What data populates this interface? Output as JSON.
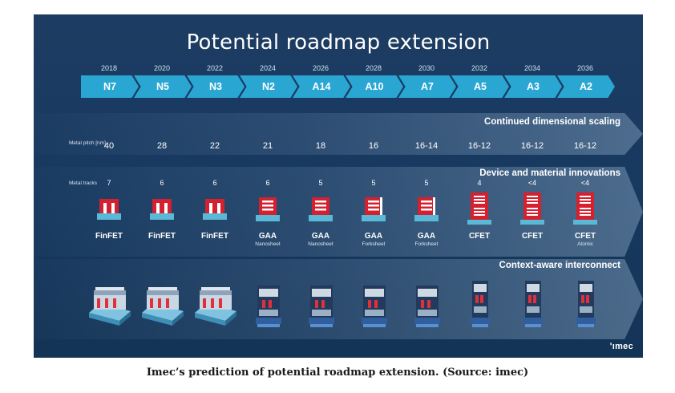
{
  "slide": {
    "title": "Potential roadmap extension",
    "logo": "'ımec"
  },
  "nodes": [
    {
      "year": "2018",
      "name": "N7",
      "pitch": "40",
      "tracks": "7",
      "device": "FinFET",
      "device_sub": "",
      "device_type": "finfet",
      "stack": 0,
      "chip": "finfet"
    },
    {
      "year": "2020",
      "name": "N5",
      "pitch": "28",
      "tracks": "6",
      "device": "FinFET",
      "device_sub": "",
      "device_type": "finfet",
      "stack": 0,
      "chip": "finfet"
    },
    {
      "year": "2022",
      "name": "N3",
      "pitch": "22",
      "tracks": "6",
      "device": "FinFET",
      "device_sub": "",
      "device_type": "finfet",
      "stack": 0,
      "chip": "finfet"
    },
    {
      "year": "2024",
      "name": "N2",
      "pitch": "21",
      "tracks": "6",
      "device": "GAA",
      "device_sub": "Nanosheet",
      "device_type": "nanosheet",
      "stack": 0,
      "chip": "gaa"
    },
    {
      "year": "2026",
      "name": "A14",
      "pitch": "18",
      "tracks": "5",
      "device": "GAA",
      "device_sub": "Nanosheet",
      "device_type": "nanosheet",
      "stack": 0,
      "chip": "gaa"
    },
    {
      "year": "2028",
      "name": "A10",
      "pitch": "16",
      "tracks": "5",
      "device": "GAA",
      "device_sub": "Forksheet",
      "device_type": "forksheet",
      "stack": 0,
      "chip": "gaa"
    },
    {
      "year": "2030",
      "name": "A7",
      "pitch": "16-14",
      "tracks": "5",
      "device": "GAA",
      "device_sub": "Forksheet",
      "device_type": "forksheet",
      "stack": 0,
      "chip": "gaa"
    },
    {
      "year": "2032",
      "name": "A5",
      "pitch": "16-12",
      "tracks": "4",
      "device": "CFET",
      "device_sub": "",
      "device_type": "cfet",
      "stack": 1,
      "chip": "cfet"
    },
    {
      "year": "2034",
      "name": "A3",
      "pitch": "16-12",
      "tracks": "<4",
      "device": "CFET",
      "device_sub": "",
      "device_type": "cfet",
      "stack": 1,
      "chip": "cfet"
    },
    {
      "year": "2036",
      "name": "A2",
      "pitch": "16-12",
      "tracks": "<4",
      "device": "CFET",
      "device_sub": "Atomic",
      "device_type": "cfet",
      "stack": 1,
      "chip": "cfet"
    }
  ],
  "rows": {
    "pitch_label": "Metal pitch [nm]",
    "tracks_label": "Metal tracks"
  },
  "bands": {
    "scaling": "Continued dimensional scaling",
    "innovations": "Device and material innovations",
    "interconnect": "Context-aware interconnect"
  },
  "caption": "Imec’s prediction of potential roadmap extension. (Source: imec)",
  "colors": {
    "background": "#17395f",
    "arrow": "#29a6d2",
    "device_red": "#d4202f",
    "substrate": "#5ab9d6"
  }
}
